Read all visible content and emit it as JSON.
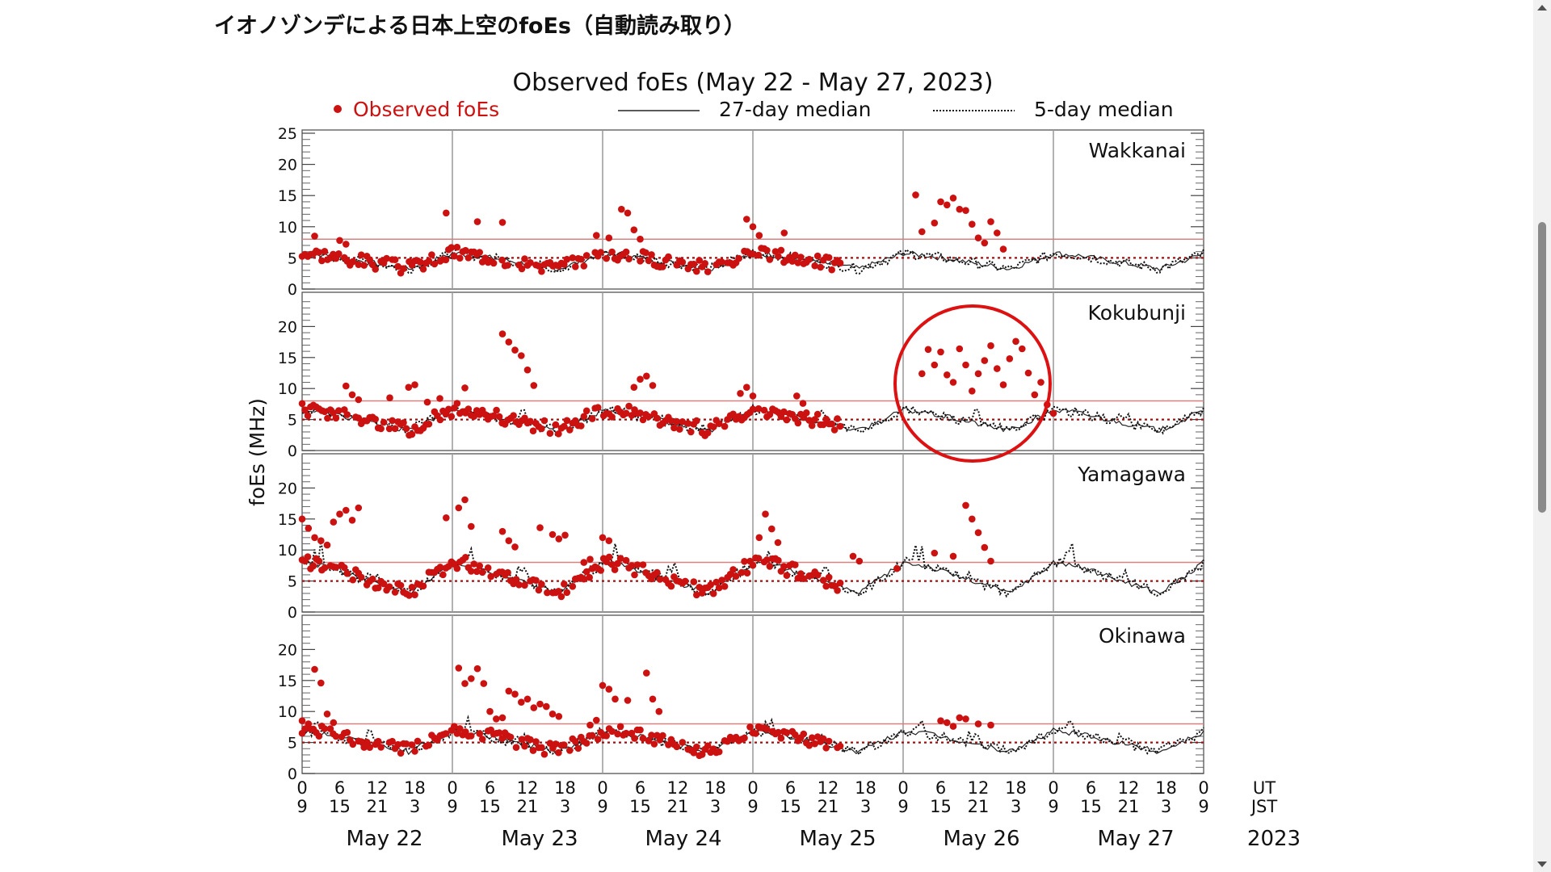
{
  "page": {
    "heading": "イオノゾンデによる日本上空のfoEs（自動読み取り）"
  },
  "colors": {
    "observed": "#cc1111",
    "median27": "#222222",
    "median5": "#111111",
    "ref_line_8": "#d98080",
    "ref_line_5": "#a01010",
    "grid": "#999999",
    "highlight": "#dd1111"
  },
  "chart_data": {
    "type": "scatter",
    "title": "Observed foEs (May 22 - May 27, 2023)",
    "ylabel": "foEs (MHz)",
    "ylim": [
      0,
      25
    ],
    "xlim_hours_ut": [
      0,
      144
    ],
    "legend": {
      "position": "top",
      "entries": [
        "Observed foEs",
        "27-day median",
        "5-day median"
      ]
    },
    "reference_lines_mhz": [
      8,
      5
    ],
    "x_ticks_ut": [
      "0",
      "6",
      "12",
      "18",
      "0",
      "6",
      "12",
      "18",
      "0",
      "6",
      "12",
      "18",
      "0",
      "6",
      "12",
      "18",
      "0",
      "6",
      "12",
      "18",
      "0",
      "6",
      "12",
      "18",
      "0"
    ],
    "x_ticks_jst": [
      "9",
      "15",
      "21",
      "3",
      "9",
      "15",
      "21",
      "3",
      "9",
      "15",
      "21",
      "3",
      "9",
      "15",
      "21",
      "3",
      "9",
      "15",
      "21",
      "3",
      "9",
      "15",
      "21",
      "3",
      "9"
    ],
    "x_axis_label_ut": "UT",
    "x_axis_label_jst": "JST",
    "days": [
      "May 22",
      "May 23",
      "May 24",
      "May 25",
      "May 26",
      "May 27"
    ],
    "year": "2023",
    "panels": [
      {
        "station": "Wakkanai",
        "y_ticks": [
          "0",
          "5",
          "10",
          "15",
          "20",
          "25"
        ],
        "base": 4.2,
        "amp": 1.2,
        "obs_end_hour": 86,
        "spikes": [
          [
            2,
            8.5
          ],
          [
            6,
            7.8
          ],
          [
            7,
            7.2
          ],
          [
            23,
            12.2
          ],
          [
            28,
            10.8
          ],
          [
            32,
            10.7
          ],
          [
            47,
            8.6
          ],
          [
            49,
            8.2
          ],
          [
            51,
            12.8
          ],
          [
            52,
            12.2
          ],
          [
            53,
            9.5
          ],
          [
            54,
            8.0
          ],
          [
            71,
            11.2
          ],
          [
            72,
            10.0
          ],
          [
            73,
            8.6
          ],
          [
            77,
            9.0
          ],
          [
            98,
            15.1
          ],
          [
            99,
            9.2
          ],
          [
            101,
            10.6
          ],
          [
            102,
            14.0
          ],
          [
            103,
            13.5
          ],
          [
            104,
            14.6
          ],
          [
            105,
            12.8
          ],
          [
            106,
            12.6
          ],
          [
            107,
            10.4
          ],
          [
            108,
            8.2
          ],
          [
            109,
            7.4
          ],
          [
            110,
            10.8
          ],
          [
            111,
            9.0
          ],
          [
            112,
            6.4
          ]
        ]
      },
      {
        "station": "Kokubunji",
        "y_ticks": [
          "0",
          "5",
          "10",
          "15",
          "20"
        ],
        "base": 4.5,
        "amp": 1.6,
        "obs_end_hour": 86,
        "spikes": [
          [
            7,
            10.4
          ],
          [
            8,
            9.0
          ],
          [
            9,
            8.2
          ],
          [
            14,
            8.5
          ],
          [
            17,
            10.2
          ],
          [
            18,
            10.6
          ],
          [
            20,
            7.8
          ],
          [
            22,
            8.4
          ],
          [
            26,
            10.1
          ],
          [
            32,
            18.8
          ],
          [
            33,
            17.5
          ],
          [
            34,
            16.2
          ],
          [
            35,
            15.3
          ],
          [
            36,
            13.0
          ],
          [
            37,
            10.5
          ],
          [
            53,
            10.2
          ],
          [
            54,
            11.5
          ],
          [
            55,
            12.0
          ],
          [
            56,
            10.5
          ],
          [
            70,
            9.2
          ],
          [
            71,
            10.2
          ],
          [
            72,
            8.8
          ],
          [
            79,
            8.8
          ],
          [
            80,
            7.6
          ],
          [
            99,
            12.4
          ],
          [
            100,
            16.3
          ],
          [
            101,
            13.8
          ],
          [
            102,
            15.9
          ],
          [
            103,
            12.2
          ],
          [
            104,
            11.0
          ],
          [
            105,
            16.4
          ],
          [
            106,
            13.8
          ],
          [
            107,
            9.6
          ],
          [
            108,
            12.4
          ],
          [
            109,
            14.5
          ],
          [
            110,
            16.9
          ],
          [
            111,
            13.2
          ],
          [
            112,
            10.6
          ],
          [
            113,
            14.8
          ],
          [
            114,
            17.6
          ],
          [
            115,
            16.4
          ],
          [
            116,
            12.5
          ],
          [
            117,
            9.0
          ],
          [
            118,
            11.0
          ],
          [
            119,
            7.4
          ],
          [
            120,
            6.0
          ]
        ]
      },
      {
        "station": "Yamagawa",
        "y_ticks": [
          "0",
          "5",
          "10",
          "15",
          "20"
        ],
        "base": 5.0,
        "amp": 2.4,
        "obs_end_hour": 86,
        "spikes": [
          [
            0,
            15.0
          ],
          [
            1,
            13.5
          ],
          [
            2,
            12.0
          ],
          [
            3,
            11.5
          ],
          [
            4,
            10.8
          ],
          [
            5,
            14.5
          ],
          [
            6,
            15.8
          ],
          [
            7,
            16.4
          ],
          [
            8,
            14.8
          ],
          [
            9,
            16.8
          ],
          [
            23,
            15.2
          ],
          [
            25,
            16.8
          ],
          [
            26,
            18.1
          ],
          [
            27,
            13.8
          ],
          [
            32,
            13.0
          ],
          [
            33,
            11.5
          ],
          [
            34,
            10.5
          ],
          [
            38,
            13.6
          ],
          [
            40,
            12.5
          ],
          [
            41,
            11.8
          ],
          [
            42,
            12.4
          ],
          [
            45,
            8.0
          ],
          [
            46,
            8.5
          ],
          [
            48,
            12.0
          ],
          [
            49,
            11.5
          ],
          [
            73,
            12.0
          ],
          [
            74,
            15.8
          ],
          [
            75,
            13.4
          ],
          [
            76,
            11.2
          ],
          [
            88,
            9.0
          ],
          [
            89,
            8.2
          ],
          [
            95,
            7.0
          ],
          [
            101,
            9.5
          ],
          [
            104,
            9.0
          ],
          [
            106,
            17.2
          ],
          [
            107,
            15.0
          ],
          [
            108,
            12.8
          ],
          [
            109,
            10.4
          ],
          [
            110,
            8.2
          ]
        ]
      },
      {
        "station": "Okinawa",
        "y_ticks": [
          "0",
          "5",
          "10",
          "15",
          "20"
        ],
        "base": 4.8,
        "amp": 1.6,
        "obs_end_hour": 86,
        "spikes": [
          [
            0,
            8.5
          ],
          [
            1,
            8.0
          ],
          [
            2,
            16.8
          ],
          [
            3,
            14.6
          ],
          [
            4,
            9.6
          ],
          [
            5,
            8.2
          ],
          [
            25,
            17.0
          ],
          [
            26,
            14.5
          ],
          [
            27,
            15.3
          ],
          [
            28,
            16.9
          ],
          [
            29,
            14.5
          ],
          [
            30,
            10.0
          ],
          [
            31,
            8.8
          ],
          [
            32,
            9.0
          ],
          [
            33,
            13.3
          ],
          [
            34,
            12.8
          ],
          [
            35,
            11.5
          ],
          [
            36,
            12.0
          ],
          [
            37,
            10.6
          ],
          [
            38,
            11.2
          ],
          [
            39,
            10.8
          ],
          [
            40,
            9.6
          ],
          [
            41,
            9.2
          ],
          [
            46,
            7.8
          ],
          [
            47,
            8.6
          ],
          [
            48,
            14.2
          ],
          [
            49,
            13.6
          ],
          [
            50,
            12.0
          ],
          [
            52,
            11.8
          ],
          [
            55,
            16.2
          ],
          [
            56,
            12.0
          ],
          [
            57,
            10.0
          ],
          [
            102,
            8.5
          ],
          [
            103,
            8.2
          ],
          [
            104,
            7.6
          ],
          [
            105,
            9.0
          ],
          [
            106,
            8.8
          ],
          [
            108,
            8.0
          ],
          [
            110,
            7.8
          ]
        ]
      }
    ]
  }
}
